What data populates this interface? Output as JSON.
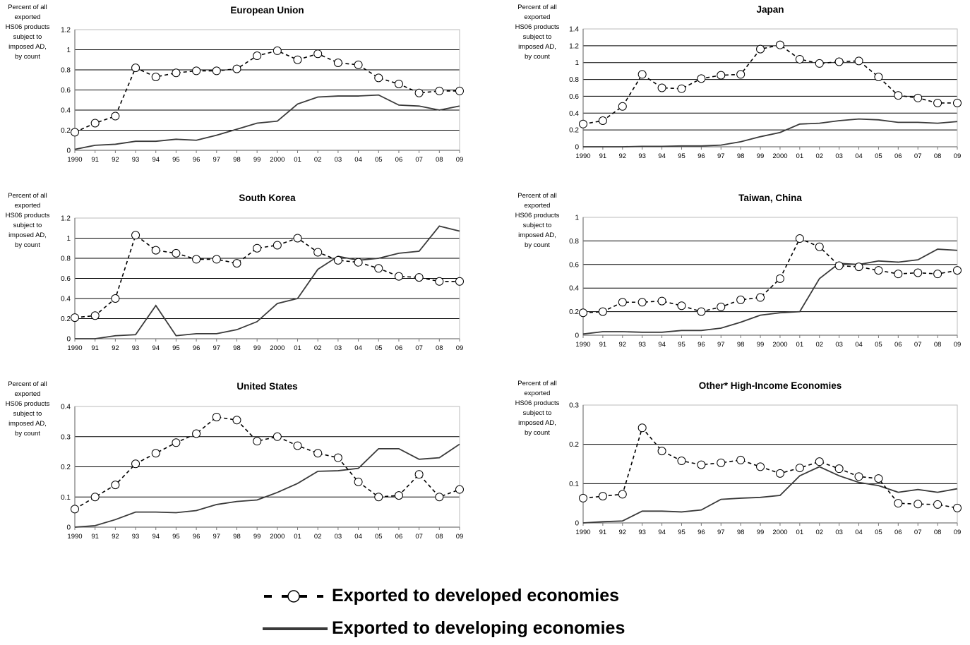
{
  "chart_data": [
    {
      "type": "line",
      "title": "European Union",
      "ylabel": "Percent of all exported HS06 products subject to imposed AD, by count",
      "ylabel_lines": [
        "Percent of all",
        "exported",
        "HS06 products",
        "subject to",
        "imposed AD,",
        "by count"
      ],
      "x": [
        "1990",
        "91",
        "92",
        "93",
        "94",
        "95",
        "96",
        "97",
        "98",
        "99",
        "2000",
        "01",
        "02",
        "03",
        "04",
        "05",
        "06",
        "07",
        "08",
        "09"
      ],
      "ylim": [
        0,
        1.2
      ],
      "yticks": [
        "0",
        "0.2",
        "0.4",
        "0.6",
        "0.8",
        "1",
        "1.2"
      ],
      "series": [
        {
          "name": "Exported to developed economies",
          "values": [
            0.18,
            0.27,
            0.34,
            0.82,
            0.73,
            0.77,
            0.79,
            0.79,
            0.81,
            0.94,
            0.99,
            0.9,
            0.96,
            0.87,
            0.85,
            0.72,
            0.66,
            0.57,
            0.59,
            0.59
          ]
        },
        {
          "name": "Exported to developing economies",
          "values": [
            0.01,
            0.05,
            0.06,
            0.09,
            0.09,
            0.11,
            0.1,
            0.15,
            0.21,
            0.27,
            0.29,
            0.46,
            0.53,
            0.54,
            0.54,
            0.55,
            0.45,
            0.44,
            0.4,
            0.44
          ]
        }
      ]
    },
    {
      "type": "line",
      "title": "Japan",
      "ylabel": "Percent of all exported HS06 products subject to imposed AD, by count",
      "ylabel_lines": [
        "Percent of all",
        "exported",
        "HS06 products",
        "subject to",
        "imposed AD,",
        "by count"
      ],
      "x": [
        "1990",
        "91",
        "92",
        "93",
        "94",
        "95",
        "96",
        "97",
        "98",
        "99",
        "2000",
        "01",
        "02",
        "03",
        "04",
        "05",
        "06",
        "07",
        "08",
        "09"
      ],
      "ylim": [
        0,
        1.4
      ],
      "yticks": [
        "0",
        "0.2",
        "0.4",
        "0.6",
        "0.8",
        "1",
        "1.2",
        "1.4"
      ],
      "series": [
        {
          "name": "Exported to developed economies",
          "values": [
            0.27,
            0.31,
            0.48,
            0.86,
            0.7,
            0.69,
            0.81,
            0.85,
            0.86,
            1.16,
            1.21,
            1.04,
            0.99,
            1.01,
            1.02,
            0.83,
            0.61,
            0.58,
            0.52,
            0.52
          ]
        },
        {
          "name": "Exported to developing economies",
          "values": [
            0.0,
            0.0,
            0.0,
            0.005,
            0.005,
            0.01,
            0.01,
            0.02,
            0.06,
            0.12,
            0.17,
            0.27,
            0.28,
            0.31,
            0.33,
            0.32,
            0.29,
            0.29,
            0.28,
            0.3
          ]
        }
      ]
    },
    {
      "type": "line",
      "title": "South Korea",
      "ylabel": "Percent of all exported HS06 products subject to imposed AD, by count",
      "ylabel_lines": [
        "Percent of all",
        "exported",
        "HS06 products",
        "subject to",
        "imposed AD,",
        "by count"
      ],
      "x": [
        "1990",
        "91",
        "92",
        "93",
        "94",
        "95",
        "96",
        "97",
        "98",
        "99",
        "2000",
        "01",
        "02",
        "03",
        "04",
        "05",
        "06",
        "07",
        "08",
        "09"
      ],
      "ylim": [
        0,
        1.2
      ],
      "yticks": [
        "0",
        "0.2",
        "0.4",
        "0.6",
        "0.8",
        "1",
        "1.2"
      ],
      "series": [
        {
          "name": "Exported to developed economies",
          "values": [
            0.21,
            0.23,
            0.4,
            1.03,
            0.88,
            0.85,
            0.79,
            0.79,
            0.75,
            0.9,
            0.93,
            1.0,
            0.86,
            0.78,
            0.76,
            0.7,
            0.62,
            0.61,
            0.57,
            0.57
          ]
        },
        {
          "name": "Exported to developing economies",
          "values": [
            0.0,
            0.0,
            0.03,
            0.04,
            0.33,
            0.03,
            0.05,
            0.05,
            0.09,
            0.17,
            0.35,
            0.4,
            0.69,
            0.82,
            0.78,
            0.8,
            0.85,
            0.87,
            1.12,
            1.07
          ]
        }
      ]
    },
    {
      "type": "line",
      "title": "Taiwan, China",
      "ylabel": "Percent of all exported HS06 products subject to imposed AD, by count",
      "ylabel_lines": [
        "Percent of all",
        "exported",
        "HS06 products",
        "subject to",
        "imposed AD,",
        "by count"
      ],
      "x": [
        "1990",
        "91",
        "92",
        "93",
        "94",
        "95",
        "96",
        "97",
        "98",
        "99",
        "2000",
        "01",
        "02",
        "03",
        "04",
        "05",
        "06",
        "07",
        "08",
        "09"
      ],
      "ylim": [
        0,
        1
      ],
      "yticks": [
        "0",
        "0.2",
        "0.4",
        "0.6",
        "0.8",
        "1"
      ],
      "series": [
        {
          "name": "Exported to developed economies",
          "values": [
            0.19,
            0.2,
            0.28,
            0.28,
            0.29,
            0.25,
            0.2,
            0.24,
            0.3,
            0.32,
            0.48,
            0.82,
            0.75,
            0.59,
            0.58,
            0.55,
            0.52,
            0.53,
            0.52,
            0.55
          ]
        },
        {
          "name": "Exported to developing economies",
          "values": [
            0.01,
            0.03,
            0.03,
            0.025,
            0.025,
            0.04,
            0.04,
            0.06,
            0.11,
            0.17,
            0.19,
            0.2,
            0.48,
            0.61,
            0.6,
            0.63,
            0.62,
            0.64,
            0.73,
            0.72
          ]
        }
      ]
    },
    {
      "type": "line",
      "title": "United States",
      "ylabel": "Percent of all exported HS06 products subject to imposed AD, by count",
      "ylabel_lines": [
        "Percent of all",
        "exported",
        "HS06 products",
        "subject to",
        "imposed AD,",
        "by count"
      ],
      "x": [
        "1990",
        "91",
        "92",
        "93",
        "94",
        "95",
        "96",
        "97",
        "98",
        "99",
        "2000",
        "01",
        "02",
        "03",
        "04",
        "05",
        "06",
        "07",
        "08",
        "09"
      ],
      "ylim": [
        0,
        0.4
      ],
      "yticks": [
        "0",
        "0.1",
        "0.2",
        "0.3",
        "0.4"
      ],
      "series": [
        {
          "name": "Exported to developed economies",
          "values": [
            0.06,
            0.1,
            0.14,
            0.21,
            0.245,
            0.28,
            0.31,
            0.365,
            0.355,
            0.285,
            0.3,
            0.27,
            0.245,
            0.23,
            0.15,
            0.1,
            0.105,
            0.175,
            0.1,
            0.125
          ]
        },
        {
          "name": "Exported to developing economies",
          "values": [
            0.0,
            0.005,
            0.025,
            0.05,
            0.05,
            0.048,
            0.055,
            0.075,
            0.085,
            0.09,
            0.115,
            0.145,
            0.185,
            0.187,
            0.195,
            0.26,
            0.26,
            0.225,
            0.23,
            0.275
          ]
        }
      ]
    },
    {
      "type": "line",
      "title": "Other* High-Income Economies",
      "ylabel": "Percent of all exported HS06 products subject to imposed AD, by count",
      "ylabel_lines": [
        "Percent of all",
        "exported",
        "HS06 products",
        "subject to",
        "imposed AD,",
        "by count"
      ],
      "x": [
        "1990",
        "91",
        "92",
        "93",
        "94",
        "95",
        "96",
        "97",
        "98",
        "99",
        "2000",
        "01",
        "02",
        "03",
        "04",
        "05",
        "06",
        "07",
        "08",
        "09"
      ],
      "ylim": [
        0,
        0.3
      ],
      "yticks": [
        "0",
        "0.1",
        "0.2",
        "0.3"
      ],
      "series": [
        {
          "name": "Exported to developed economies",
          "values": [
            0.063,
            0.068,
            0.073,
            0.242,
            0.183,
            0.158,
            0.148,
            0.153,
            0.16,
            0.143,
            0.126,
            0.14,
            0.156,
            0.138,
            0.118,
            0.113,
            0.05,
            0.048,
            0.047,
            0.038
          ]
        },
        {
          "name": "Exported to developing economies",
          "values": [
            0.0,
            0.003,
            0.005,
            0.03,
            0.03,
            0.028,
            0.033,
            0.06,
            0.063,
            0.065,
            0.07,
            0.12,
            0.143,
            0.12,
            0.103,
            0.095,
            0.078,
            0.085,
            0.078,
            0.087
          ]
        }
      ]
    }
  ],
  "legend": {
    "developed_label": "Exported to developed economies",
    "developing_label": "Exported to developing economies"
  }
}
